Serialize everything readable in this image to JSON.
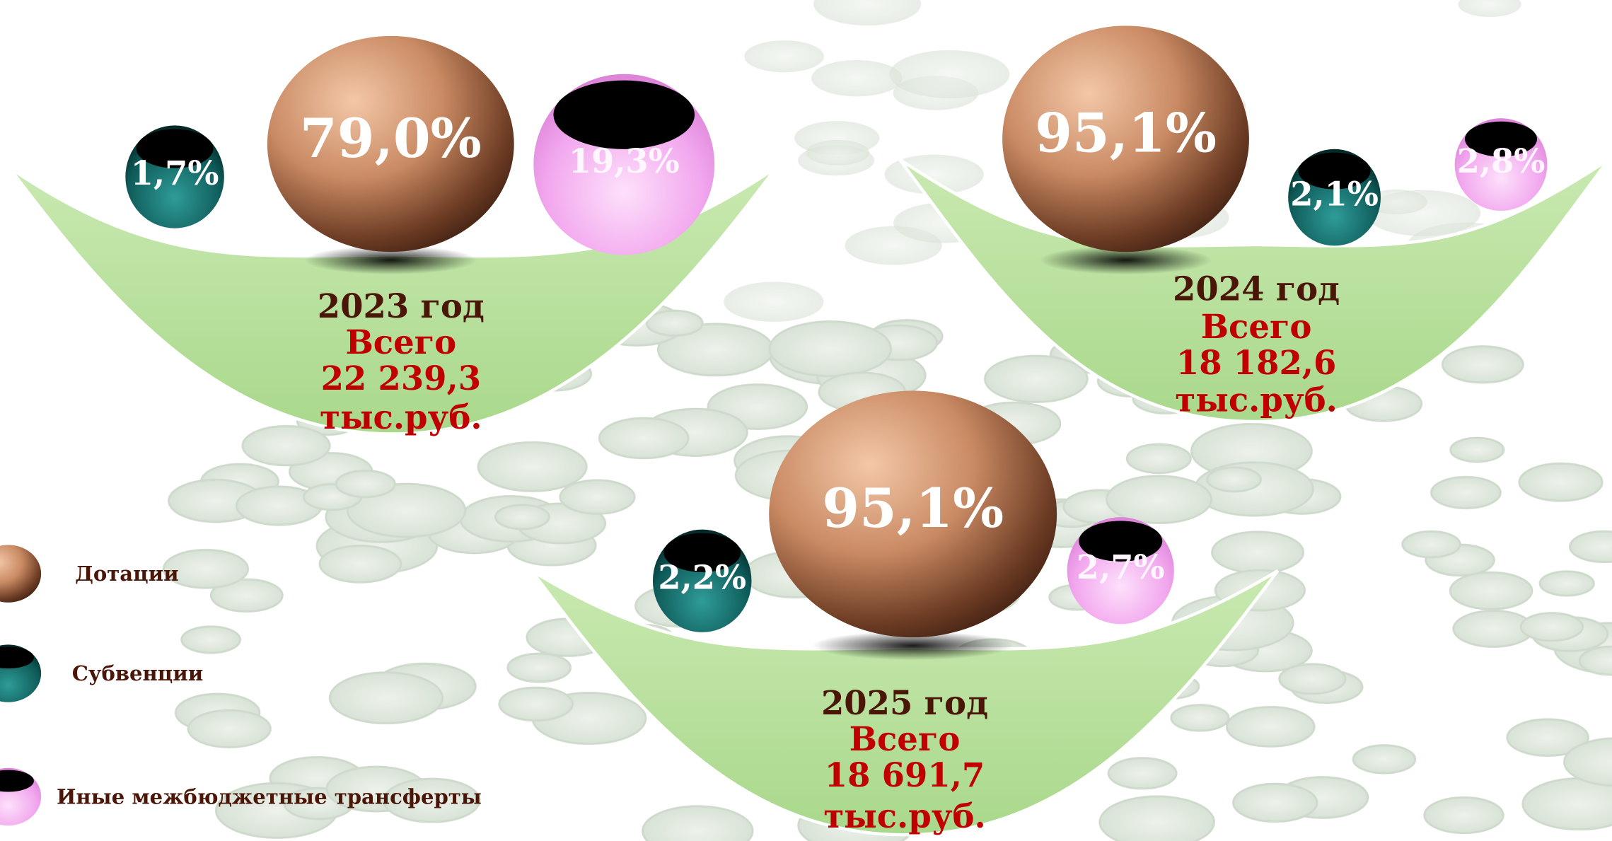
{
  "panels": [
    {
      "year": "2023 год",
      "total_label": "Всего",
      "total": "22 239,3",
      "unit": "тыс.руб.",
      "shares": [
        "79,0%",
        "1,7%",
        "19,3%"
      ]
    },
    {
      "year": "2024 год",
      "total_label": "Всего",
      "total": "18 182,6",
      "unit": "тыс.руб.",
      "shares": [
        "95,1%",
        "2,1%",
        "2,8%"
      ]
    },
    {
      "year": "2025 год",
      "total_label": "Всего",
      "total": "18 691,7",
      "unit": "тыс.руб.",
      "shares": [
        "95,1%",
        "2,2%",
        "2,7%"
      ]
    }
  ],
  "legend": [
    "Дотации",
    "Субвенции",
    "Иные межбюджетные трансферты"
  ]
}
